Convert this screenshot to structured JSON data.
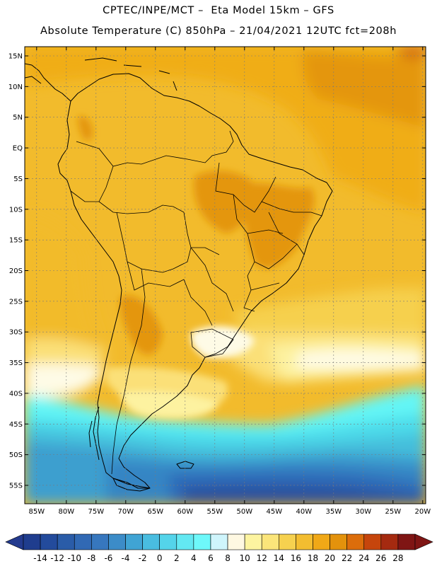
{
  "header": {
    "line1": "CPTEC/INPE/MCT –  Eta Model 15km – GFS",
    "line2": "Absolute Temperature (C) 850hPa – 21/04/2021 12UTC fct=208h"
  },
  "map": {
    "lat_labels": [
      "15N",
      "10N",
      "5N",
      "EQ",
      "5S",
      "10S",
      "15S",
      "20S",
      "25S",
      "30S",
      "35S",
      "40S",
      "45S",
      "50S",
      "55S"
    ],
    "lon_labels": [
      "85W",
      "80W",
      "75W",
      "70W",
      "65W",
      "60W",
      "55W",
      "50W",
      "45W",
      "40W",
      "35W",
      "30W",
      "25W",
      "20W"
    ],
    "lat_values": [
      15,
      10,
      5,
      0,
      -5,
      -10,
      -15,
      -20,
      -25,
      -30,
      -35,
      -40,
      -45,
      -50,
      -55
    ],
    "lon_values": [
      -85,
      -80,
      -75,
      -70,
      -65,
      -60,
      -55,
      -50,
      -45,
      -40,
      -35,
      -30,
      -25,
      -20
    ],
    "lat_range": [
      -58,
      16.5
    ],
    "lon_range": [
      -87,
      -19.5
    ],
    "colors": {
      "t28": "#d1650c",
      "t22": "#e4960d",
      "t18": "#f0ad16",
      "t16": "#f2bb2c",
      "t14": "#f6d04e",
      "t12": "#fbe078",
      "t10": "#fdf2a0",
      "t8": "#fefbe6",
      "t4": "#cef5fc",
      "t2": "#63f6f6",
      "t0": "#4edcea",
      "tm2": "#45bfdc",
      "tm4": "#3c9fcf",
      "tm6": "#3685c4",
      "tm8": "#2f6ab8",
      "tm10": "#2a4f9e",
      "land_line": "#000000",
      "grid": "#7a7a7a"
    }
  },
  "colorbar": {
    "labels": [
      "-14",
      "-12",
      "-10",
      "-8",
      "-6",
      "-4",
      "-2",
      "0",
      "2",
      "4",
      "6",
      "8",
      "10",
      "12",
      "14",
      "16",
      "18",
      "20",
      "22",
      "24",
      "26",
      "28"
    ],
    "low_color": "#233a8e",
    "high_color": "#7f1514",
    "colors": [
      "#1f3d8e",
      "#234b9c",
      "#2a5ca8",
      "#3169b4",
      "#3777be",
      "#3c8cc8",
      "#40a4d4",
      "#49bde0",
      "#54d4ea",
      "#63e8f2",
      "#6ef8fa",
      "#cff5fc",
      "#fef8e2",
      "#fdf4a0",
      "#fbe57a",
      "#f6d14f",
      "#f3bd30",
      "#f0a817",
      "#e3920c",
      "#dc6d0b",
      "#c6450c",
      "#a52a10",
      "#7f1514"
    ]
  }
}
